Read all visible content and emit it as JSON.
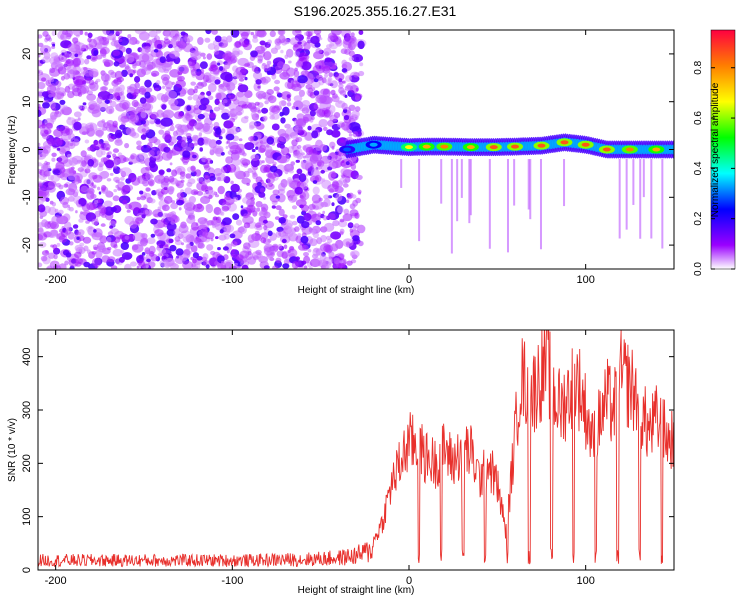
{
  "title": "S196.2025.355.16.27.E31",
  "chart_data": [
    {
      "type": "heatmap",
      "xlabel": "Height of straight line (km)",
      "ylabel": "Frequency (Hz)",
      "xlim": [
        -210,
        150
      ],
      "ylim": [
        -25,
        25
      ],
      "xticks": [
        -200,
        -100,
        0,
        100
      ],
      "yticks": [
        -20,
        -10,
        0,
        10,
        20
      ],
      "colorbar": {
        "label": "Normalized spectral amplitude",
        "range": [
          0,
          0.95
        ],
        "ticks": [
          0.0,
          0.2,
          0.4,
          0.6,
          0.8
        ]
      },
      "noise_region": {
        "x_start": -210,
        "x_end": -27,
        "freq_range": [
          -25,
          25
        ],
        "amplitude": "0.05-0.15"
      },
      "signal_track": [
        {
          "x": -35,
          "freq": 0.0,
          "amp": 0.3
        },
        {
          "x": -20,
          "freq": 1.0,
          "amp": 0.35
        },
        {
          "x": 0,
          "freq": 0.5,
          "amp": 0.7
        },
        {
          "x": 10,
          "freq": 0.6,
          "amp": 0.8
        },
        {
          "x": 20,
          "freq": 0.6,
          "amp": 0.85
        },
        {
          "x": 35,
          "freq": 0.5,
          "amp": 0.8
        },
        {
          "x": 48,
          "freq": 0.5,
          "amp": 0.9
        },
        {
          "x": 60,
          "freq": 0.6,
          "amp": 0.9
        },
        {
          "x": 75,
          "freq": 0.8,
          "amp": 0.9
        },
        {
          "x": 88,
          "freq": 1.5,
          "amp": 0.9
        },
        {
          "x": 100,
          "freq": 1.0,
          "amp": 0.9
        },
        {
          "x": 112,
          "freq": 0.0,
          "amp": 0.9
        },
        {
          "x": 125,
          "freq": 0.0,
          "amp": 0.85
        },
        {
          "x": 140,
          "freq": 0.0,
          "amp": 0.8
        }
      ]
    },
    {
      "type": "line",
      "xlabel": "Height of straight line (km)",
      "ylabel": "SNR (10 * v/v)",
      "xlim": [
        -210,
        150
      ],
      "ylim": [
        0,
        450
      ],
      "xticks": [
        -200,
        -100,
        0,
        100
      ],
      "yticks": [
        0,
        100,
        200,
        300,
        400
      ],
      "color": "#e8302c",
      "x": [
        -210,
        -180,
        -150,
        -120,
        -90,
        -60,
        -40,
        -30,
        -22,
        -15,
        -10,
        -5,
        0,
        5,
        10,
        15,
        20,
        25,
        30,
        35,
        40,
        45,
        50,
        55,
        60,
        63,
        66,
        70,
        75,
        78,
        82,
        86,
        90,
        95,
        100,
        104,
        108,
        112,
        116,
        120,
        124,
        128,
        132,
        136,
        140,
        144,
        148,
        150
      ],
      "y": [
        20,
        20,
        20,
        20,
        20,
        22,
        25,
        30,
        40,
        90,
        160,
        200,
        240,
        230,
        210,
        200,
        230,
        200,
        230,
        220,
        170,
        200,
        160,
        70,
        250,
        360,
        350,
        330,
        370,
        390,
        330,
        300,
        330,
        360,
        300,
        240,
        280,
        320,
        300,
        360,
        350,
        330,
        290,
        260,
        280,
        260,
        240,
        260
      ]
    }
  ]
}
